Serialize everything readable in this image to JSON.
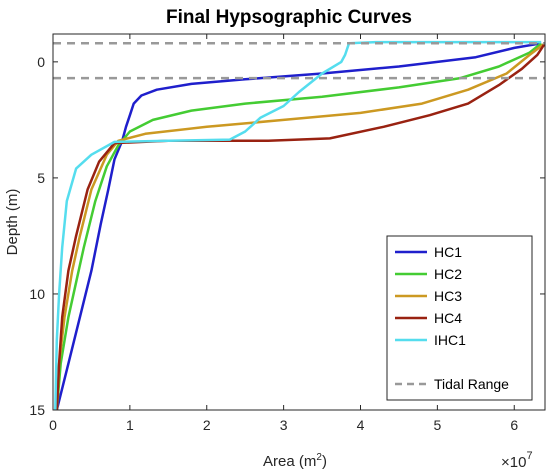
{
  "chart_data": {
    "type": "line",
    "title": "Final Hypsographic Curves",
    "xlabel": "Area (m",
    "xlabel_sup": "2",
    "xlabel_close": ")",
    "ylabel": "Depth (m)",
    "x_exponent_base": "×10",
    "x_exponent_power": "7",
    "x_scale": 10000000,
    "xlim": [
      0,
      6.4
    ],
    "ylim": [
      15,
      -1.2
    ],
    "y_reversed": true,
    "x_ticks": [
      0,
      1,
      2,
      3,
      4,
      5,
      6
    ],
    "x_tick_labels": [
      "0",
      "1",
      "2",
      "3",
      "4",
      "5",
      "6"
    ],
    "y_ticks": [
      0,
      5,
      10,
      15
    ],
    "y_tick_labels": [
      "0",
      "5",
      "10",
      "15"
    ],
    "grid": false,
    "legend_position": "bottom-right",
    "series": [
      {
        "name": "HC1",
        "color": "#1f1fcc",
        "points": [
          [
            0.05,
            15
          ],
          [
            0.2,
            13
          ],
          [
            0.35,
            11
          ],
          [
            0.5,
            9
          ],
          [
            0.62,
            7
          ],
          [
            0.72,
            5.5
          ],
          [
            0.8,
            4.2
          ],
          [
            0.9,
            3.4
          ],
          [
            0.95,
            2.8
          ],
          [
            1.0,
            2.3
          ],
          [
            1.05,
            1.8
          ],
          [
            1.15,
            1.45
          ],
          [
            1.35,
            1.2
          ],
          [
            1.8,
            0.95
          ],
          [
            2.5,
            0.75
          ],
          [
            3.5,
            0.5
          ],
          [
            4.5,
            0.2
          ],
          [
            5.5,
            -0.2
          ],
          [
            6.0,
            -0.6
          ],
          [
            6.35,
            -0.8
          ]
        ]
      },
      {
        "name": "HC2",
        "color": "#44cc33",
        "points": [
          [
            0.05,
            15
          ],
          [
            0.1,
            13
          ],
          [
            0.2,
            11
          ],
          [
            0.3,
            9.5
          ],
          [
            0.4,
            8
          ],
          [
            0.55,
            6
          ],
          [
            0.7,
            4.5
          ],
          [
            0.85,
            3.6
          ],
          [
            1.0,
            3.0
          ],
          [
            1.3,
            2.5
          ],
          [
            1.8,
            2.1
          ],
          [
            2.5,
            1.8
          ],
          [
            3.5,
            1.5
          ],
          [
            4.5,
            1.1
          ],
          [
            5.3,
            0.7
          ],
          [
            5.8,
            0.2
          ],
          [
            6.2,
            -0.4
          ],
          [
            6.35,
            -0.8
          ]
        ]
      },
      {
        "name": "HC3",
        "color": "#cc9922",
        "points": [
          [
            0.05,
            15
          ],
          [
            0.08,
            13
          ],
          [
            0.15,
            11
          ],
          [
            0.25,
            9
          ],
          [
            0.35,
            7.5
          ],
          [
            0.5,
            5.5
          ],
          [
            0.7,
            4
          ],
          [
            0.85,
            3.4
          ],
          [
            1.2,
            3.1
          ],
          [
            2.0,
            2.8
          ],
          [
            3.0,
            2.5
          ],
          [
            4.0,
            2.2
          ],
          [
            4.8,
            1.8
          ],
          [
            5.4,
            1.2
          ],
          [
            5.9,
            0.5
          ],
          [
            6.2,
            -0.3
          ],
          [
            6.4,
            -0.8
          ]
        ]
      },
      {
        "name": "HC4",
        "color": "#992211",
        "points": [
          [
            0.05,
            15
          ],
          [
            0.08,
            13
          ],
          [
            0.12,
            11
          ],
          [
            0.2,
            9
          ],
          [
            0.3,
            7.5
          ],
          [
            0.45,
            5.5
          ],
          [
            0.6,
            4.3
          ],
          [
            0.8,
            3.5
          ],
          [
            1.5,
            3.4
          ],
          [
            2.8,
            3.4
          ],
          [
            3.6,
            3.3
          ],
          [
            4.3,
            2.8
          ],
          [
            4.9,
            2.3
          ],
          [
            5.4,
            1.8
          ],
          [
            5.8,
            1.0
          ],
          [
            6.1,
            0.3
          ],
          [
            6.3,
            -0.3
          ],
          [
            6.4,
            -0.8
          ]
        ]
      },
      {
        "name": "IHC1",
        "color": "#55ddee",
        "points": [
          [
            0.03,
            15
          ],
          [
            0.05,
            12
          ],
          [
            0.08,
            10
          ],
          [
            0.12,
            8
          ],
          [
            0.18,
            6
          ],
          [
            0.3,
            4.6
          ],
          [
            0.5,
            4.0
          ],
          [
            0.8,
            3.45
          ],
          [
            1.5,
            3.4
          ],
          [
            2.3,
            3.35
          ],
          [
            2.5,
            3.0
          ],
          [
            2.7,
            2.4
          ],
          [
            3.0,
            1.9
          ],
          [
            3.2,
            1.3
          ],
          [
            3.5,
            0.5
          ],
          [
            3.75,
            0.0
          ],
          [
            3.8,
            -0.3
          ],
          [
            3.85,
            -0.8
          ],
          [
            4.2,
            -0.85
          ],
          [
            5.5,
            -0.85
          ],
          [
            6.35,
            -0.85
          ]
        ]
      }
    ],
    "tidal_range": {
      "name": "Tidal Range",
      "color": "#999999",
      "levels": [
        -0.8,
        0.7
      ]
    }
  }
}
